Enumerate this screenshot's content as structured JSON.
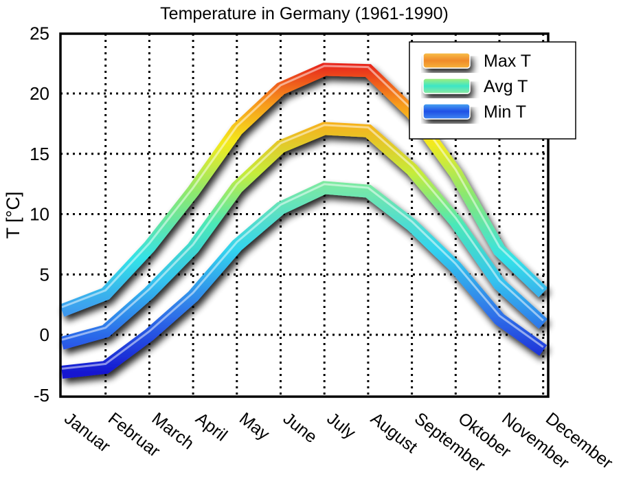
{
  "chart_data": {
    "type": "line",
    "title": "Temperature in Germany (1961-1990)",
    "xlabel": "",
    "ylabel": "T [°C]",
    "ylim": [
      -5,
      25
    ],
    "yticks": [
      "-5",
      "0",
      "5",
      "10",
      "15",
      "20",
      "25"
    ],
    "categories": [
      "Januar",
      "Februar",
      "March",
      "April",
      "May",
      "June",
      "July",
      "August",
      "September",
      "Oktober",
      "November",
      "December"
    ],
    "grid": true,
    "legend_position": "top-right",
    "series": [
      {
        "name": "Max T",
        "values": [
          2.0,
          3.4,
          7.3,
          11.9,
          17.0,
          20.4,
          22.0,
          21.9,
          18.4,
          13.4,
          7.0,
          3.5
        ]
      },
      {
        "name": "Avg T",
        "values": [
          -0.7,
          0.3,
          3.5,
          7.2,
          12.2,
          15.6,
          17.1,
          16.9,
          13.7,
          9.4,
          4.2,
          0.9
        ]
      },
      {
        "name": "Min T",
        "values": [
          -3.1,
          -2.7,
          0.0,
          3.2,
          7.4,
          10.5,
          12.2,
          11.9,
          9.1,
          5.6,
          1.3,
          -1.3
        ]
      }
    ]
  }
}
